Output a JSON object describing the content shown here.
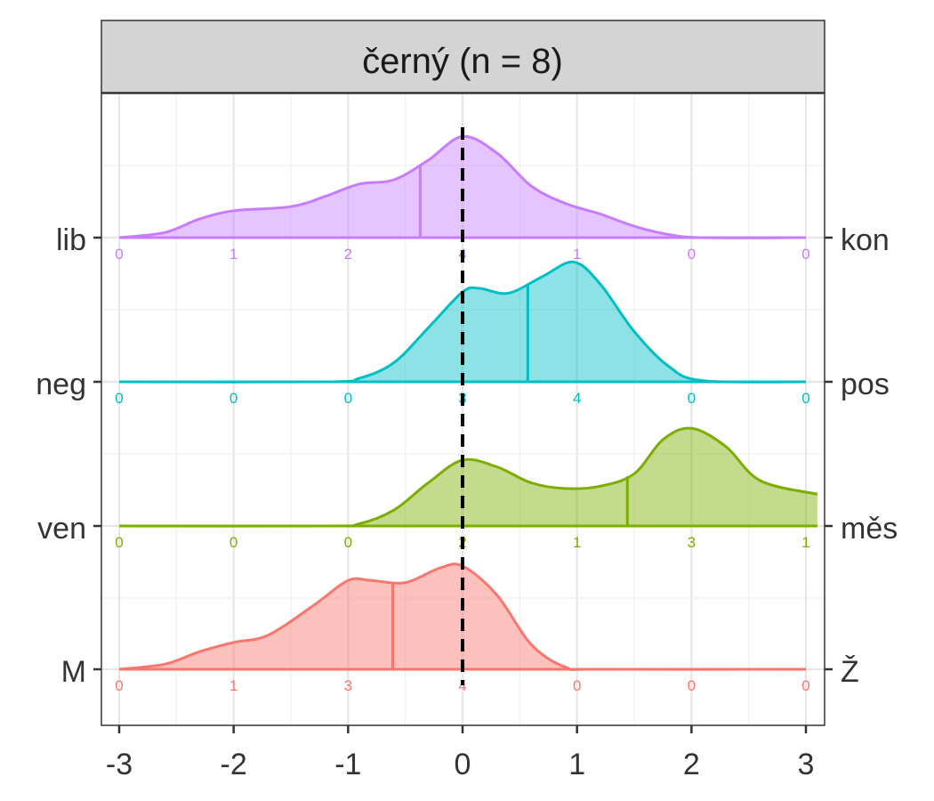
{
  "chart_data": {
    "type": "ridgeline",
    "title": "černý (n = 8)",
    "xlabel": "",
    "ylabel": "",
    "xlim": [
      -3.1,
      3.1
    ],
    "x_ticks": [
      -3,
      -2,
      -1,
      0,
      1,
      2,
      3
    ],
    "x_tick_labels": [
      "-3",
      "-2",
      "-1",
      "0",
      "1",
      "2",
      "3"
    ],
    "reference_line_x": 0,
    "grid": true,
    "series": [
      {
        "left_label": "lib",
        "right_label": "kon",
        "color": "#c77cff",
        "counts": [
          "0",
          "1",
          "2",
          "4",
          "1",
          "0",
          "0"
        ],
        "mean": -0.37,
        "density_x": [
          -3.0,
          -2.6,
          -2.3,
          -2.0,
          -1.5,
          -1.2,
          -0.9,
          -0.6,
          -0.3,
          0.0,
          0.3,
          0.6,
          0.9,
          1.2,
          1.5,
          1.8,
          2.1,
          3.0
        ],
        "density_y": [
          0.0,
          0.05,
          0.18,
          0.26,
          0.3,
          0.4,
          0.52,
          0.56,
          0.75,
          0.98,
          0.82,
          0.5,
          0.33,
          0.23,
          0.11,
          0.03,
          0.0,
          0.0
        ]
      },
      {
        "left_label": "neg",
        "right_label": "pos",
        "color": "#00bfc4",
        "counts": [
          "0",
          "0",
          "0",
          "3",
          "4",
          "0",
          "0"
        ],
        "mean": 0.57,
        "density_x": [
          -3.0,
          -1.2,
          -0.9,
          -0.6,
          -0.3,
          0.0,
          0.15,
          0.4,
          0.7,
          0.97,
          1.2,
          1.5,
          1.8,
          2.1,
          3.0
        ],
        "density_y": [
          0.0,
          0.0,
          0.03,
          0.16,
          0.45,
          0.75,
          0.78,
          0.74,
          0.88,
          1.0,
          0.82,
          0.42,
          0.13,
          0.01,
          0.0
        ],
        "y_scale": 1.16
      },
      {
        "left_label": "ven",
        "right_label": "měs",
        "color": "#7cae00",
        "counts": [
          "0",
          "0",
          "0",
          "2",
          "1",
          "3",
          "1"
        ],
        "mean": 1.44,
        "density_x": [
          -3.0,
          -1.2,
          -0.9,
          -0.6,
          -0.3,
          0.0,
          0.3,
          0.6,
          0.9,
          1.2,
          1.5,
          1.75,
          2.0,
          2.3,
          2.6,
          3.1
        ],
        "density_y": [
          0.0,
          0.0,
          0.02,
          0.14,
          0.38,
          0.58,
          0.52,
          0.38,
          0.33,
          0.35,
          0.46,
          0.76,
          0.86,
          0.7,
          0.4,
          0.28
        ],
        "y_scale": 1.1
      },
      {
        "left_label": "M",
        "right_label": "Ž",
        "color": "#f8766d",
        "counts": [
          "0",
          "1",
          "3",
          "4",
          "0",
          "0",
          "0"
        ],
        "mean": -0.61,
        "density_x": [
          -3.0,
          -2.6,
          -2.3,
          -2.0,
          -1.7,
          -1.3,
          -1.0,
          -0.8,
          -0.5,
          -0.2,
          0.0,
          0.3,
          0.6,
          0.9,
          1.2,
          3.0
        ],
        "density_y": [
          0.0,
          0.05,
          0.17,
          0.26,
          0.33,
          0.62,
          0.86,
          0.86,
          0.84,
          0.98,
          1.0,
          0.72,
          0.24,
          0.02,
          0.0,
          0.0
        ],
        "y_scale": 1.0
      }
    ]
  }
}
